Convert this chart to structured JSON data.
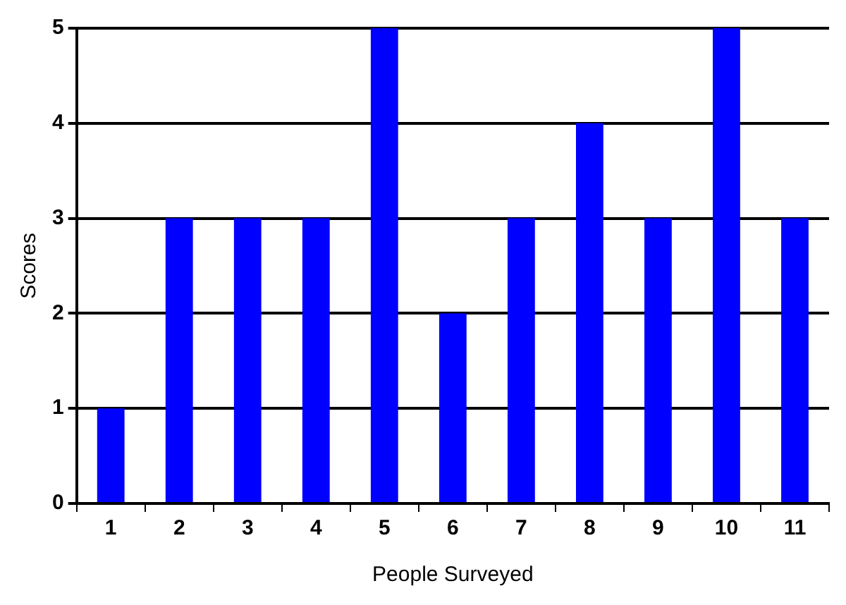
{
  "chart_data": {
    "type": "bar",
    "xlabel": "People Surveyed",
    "ylabel": "Scores",
    "categories": [
      "1",
      "2",
      "3",
      "4",
      "5",
      "6",
      "7",
      "8",
      "9",
      "10",
      "11"
    ],
    "values": [
      1,
      3,
      3,
      3,
      5,
      2,
      3,
      4,
      3,
      5,
      3
    ],
    "color": "#0000ff",
    "ylim": [
      0,
      5
    ],
    "yticks": [
      0,
      1,
      2,
      3,
      4,
      5
    ],
    "grid": "y",
    "legend": false
  }
}
